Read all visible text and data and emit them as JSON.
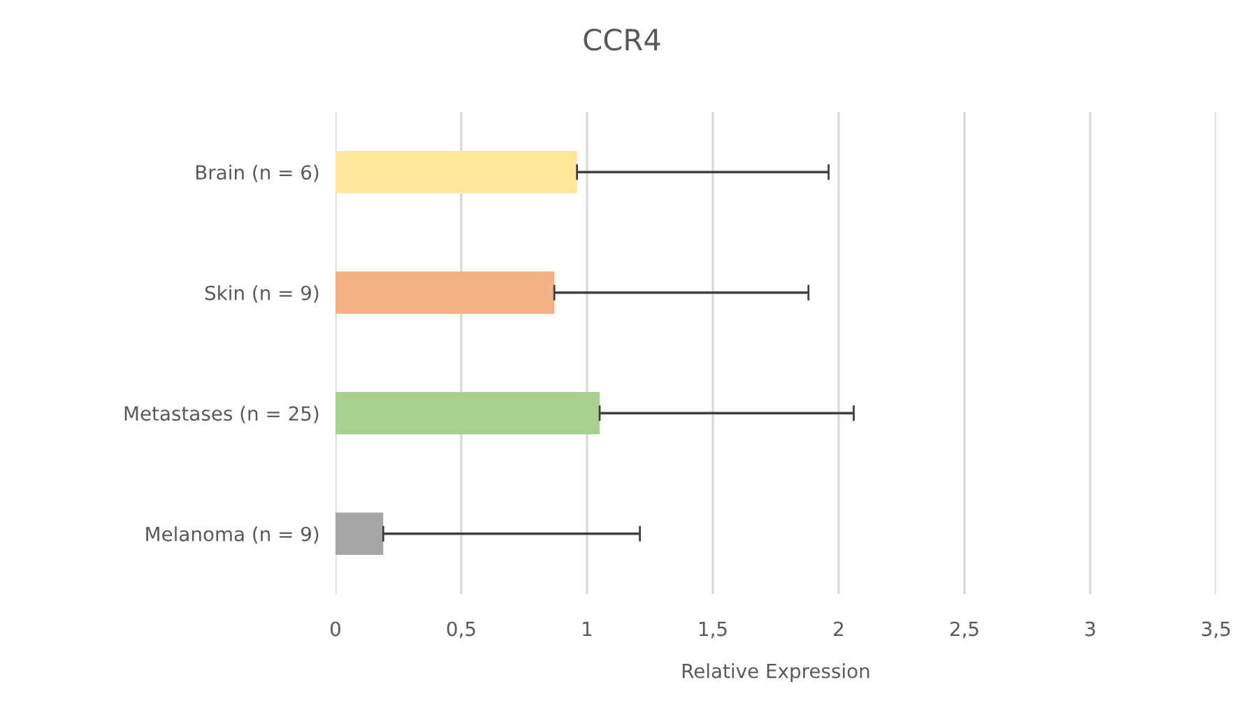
{
  "chart_data": {
    "type": "bar",
    "orientation": "horizontal",
    "title": "CCR4",
    "xlabel": "Relative Expression",
    "categories": [
      "Brain (n = 6)",
      "Skin (n = 9)",
      "Metastases (n = 25)",
      "Melanoma (n = 9)"
    ],
    "values": [
      0.96,
      0.87,
      1.05,
      0.19
    ],
    "errors": [
      [
        0.96,
        1.96
      ],
      [
        0.87,
        1.88
      ],
      [
        1.05,
        2.06
      ],
      [
        0.19,
        1.21
      ]
    ],
    "colors": [
      "#ffe699",
      "#f4b183",
      "#a9d18e",
      "#a5a5a5"
    ],
    "xlim": [
      0,
      3.5
    ],
    "xticks": [
      0,
      {
        "value": 0.5,
        "label": "0,5"
      },
      1,
      {
        "value": 1.5,
        "label": "1,5"
      },
      2,
      {
        "value": 2.5,
        "label": "2,5"
      },
      3,
      {
        "value": 3.5,
        "label": "3,5"
      }
    ],
    "grid": "x",
    "legend": false
  }
}
